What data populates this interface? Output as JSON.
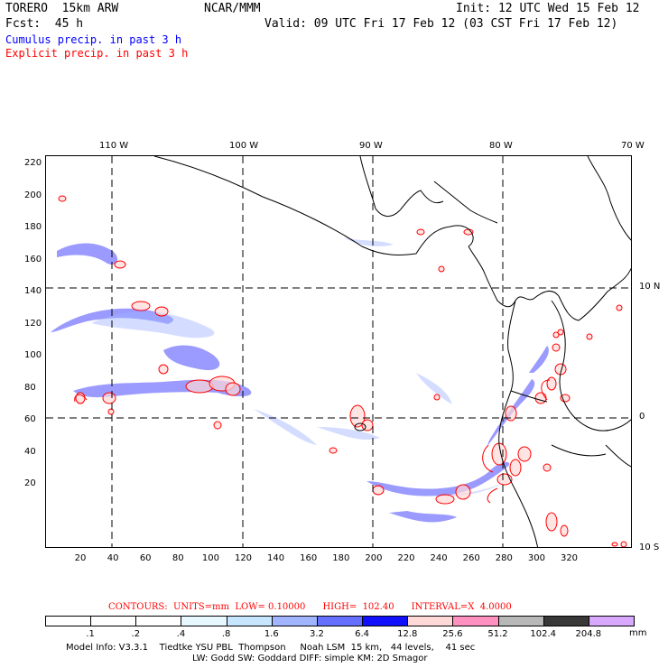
{
  "header": {
    "model": "TORERO  15km ARW",
    "org": "NCAR/MMM",
    "init": "Init: 12 UTC Wed 15 Feb 12",
    "fcst": "Fcst:  45 h",
    "valid": "Valid: 09 UTC Fri 17 Feb 12 (03 CST Fri 17 Feb 12)"
  },
  "legend": {
    "cumulus": "Cumulus precip. in past 3 h",
    "explicit": "Explicit precip. in past 3 h"
  },
  "axes": {
    "top_lon_labels": [
      "110 W",
      "100 W",
      "90 W",
      "80 W",
      "70 W"
    ],
    "right_lat_labels": [
      "10 N",
      "0",
      "10 S"
    ],
    "y_ticks": [
      "220",
      "200",
      "180",
      "160",
      "140",
      "120",
      "100",
      "80",
      "60",
      "40",
      "20"
    ],
    "x_ticks": [
      "20",
      "40",
      "60",
      "80",
      "100",
      "120",
      "140",
      "160",
      "180",
      "200",
      "220",
      "240",
      "260",
      "280",
      "300",
      "320"
    ]
  },
  "contours_line": "CONTOURS:  UNITS=mm  LOW= 0.10000      HIGH=  102.40      INTERVAL=X  4.0000",
  "colorbar": {
    "labels": [
      ".1",
      ".2",
      ".4",
      ".8",
      "1.6",
      "3.2",
      "6.4",
      "12.8",
      "25.6",
      "51.2",
      "102.4",
      "204.8"
    ],
    "unit": "mm",
    "colors": [
      "#ffffff",
      "#ffffff",
      "#ffffff",
      "#e8f8ff",
      "#c7e6ff",
      "#a0b4ff",
      "#6670ff",
      "#1010ff",
      "#ffd8d8",
      "#ff90c0",
      "#b8b8b8",
      "#383838",
      "#d8a8ff"
    ]
  },
  "model_info": {
    "line1": "Model Info: V3.3.1    Tiedtke YSU PBL  Thompson     Noah LSM  15 km,   44 levels,    41 sec",
    "line2": "LW: Godd SW: Goddard DIFF: simple KM: 2D Smagor"
  },
  "map": {
    "coast_color": "#000000",
    "cumulus_color": "#2020ff",
    "explicit_color": "#ff0000"
  }
}
